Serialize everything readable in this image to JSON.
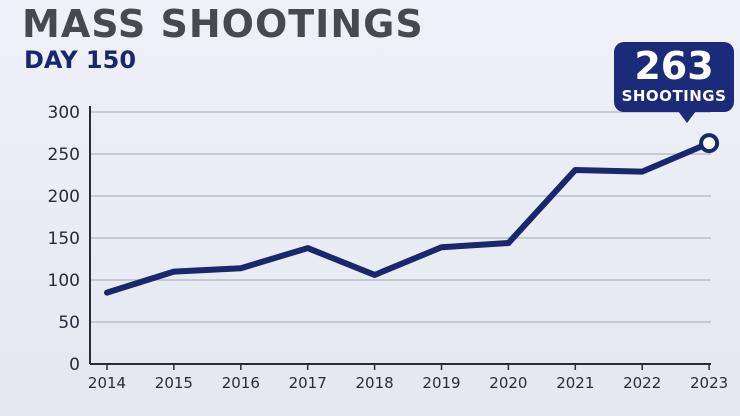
{
  "header": {
    "title": "MASS SHOOTINGS",
    "subtitle": "DAY 150"
  },
  "callout": {
    "value": "263",
    "label": "SHOOTINGS"
  },
  "colors": {
    "line": "#19286e",
    "callout_bg": "#1c2a7a",
    "gridline": "#b9bec8"
  },
  "chart_data": {
    "type": "line",
    "title": "MASS SHOOTINGS",
    "subtitle": "DAY 150",
    "xlabel": "",
    "ylabel": "",
    "categories": [
      "2014",
      "2015",
      "2016",
      "2017",
      "2018",
      "2019",
      "2020",
      "2021",
      "2022",
      "2023"
    ],
    "series": [
      {
        "values": [
          85,
          110,
          114,
          138,
          106,
          139,
          144,
          231,
          229,
          263
        ]
      }
    ],
    "yticks": [
      0,
      50,
      100,
      150,
      200,
      250,
      300
    ],
    "ylim": [
      0,
      300
    ],
    "grid": true,
    "highlight": {
      "category": "2023",
      "value": 263,
      "label": "SHOOTINGS"
    }
  }
}
